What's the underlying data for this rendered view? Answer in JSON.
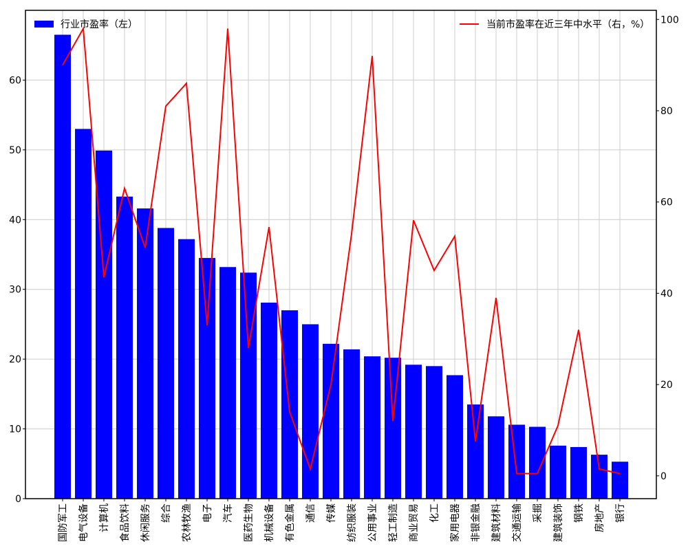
{
  "chart_data": {
    "type": "bar",
    "categories": [
      "国防军工",
      "电气设备",
      "计算机",
      "食品饮料",
      "休闲服务",
      "综合",
      "农林牧渔",
      "电子",
      "汽车",
      "医药生物",
      "机械设备",
      "有色金属",
      "通信",
      "传媒",
      "纺织服装",
      "公用事业",
      "轻工制造",
      "商业贸易",
      "化工",
      "家用电器",
      "非银金融",
      "建筑材料",
      "交通运输",
      "采掘",
      "建筑装饰",
      "钢铁",
      "房地产",
      "银行"
    ],
    "series": [
      {
        "name": "行业市盈率（左）",
        "axis": "left",
        "type": "bar",
        "color": "#0000ff",
        "values": [
          66.5,
          53.0,
          49.9,
          43.3,
          41.6,
          38.8,
          37.2,
          34.5,
          33.2,
          32.4,
          28.1,
          27.0,
          25.0,
          22.2,
          21.4,
          20.4,
          20.2,
          19.2,
          19.0,
          17.7,
          13.5,
          11.8,
          10.6,
          10.3,
          7.6,
          7.4,
          6.3,
          5.3
        ]
      },
      {
        "name": "当前市盈率在近三年中水平（右，%）",
        "axis": "right",
        "type": "line",
        "color": "#ff0000",
        "values": [
          90.0,
          98.0,
          43.5,
          63.0,
          50.0,
          81.0,
          86.0,
          33.0,
          98.0,
          28.0,
          54.5,
          14.0,
          1.5,
          20.0,
          53.0,
          92.0,
          12.0,
          56.0,
          45.0,
          52.5,
          7.5,
          39.0,
          0.5,
          0.5,
          11.0,
          32.0,
          1.5,
          0.5
        ]
      }
    ],
    "left_axis": {
      "ylim": [
        0,
        70
      ],
      "ticks": [
        "0",
        "10",
        "20",
        "30",
        "40",
        "50",
        "60"
      ]
    },
    "right_axis": {
      "ylim": [
        -5,
        102
      ],
      "ticks": [
        "0",
        "20",
        "40",
        "60",
        "80",
        "100"
      ]
    },
    "grid": true,
    "legend": {
      "left_entry": "行业市盈率（左）",
      "right_entry": "当前市盈率在近三年中水平（右，%）"
    },
    "title": "",
    "xlabel": "",
    "ylabel": ""
  }
}
